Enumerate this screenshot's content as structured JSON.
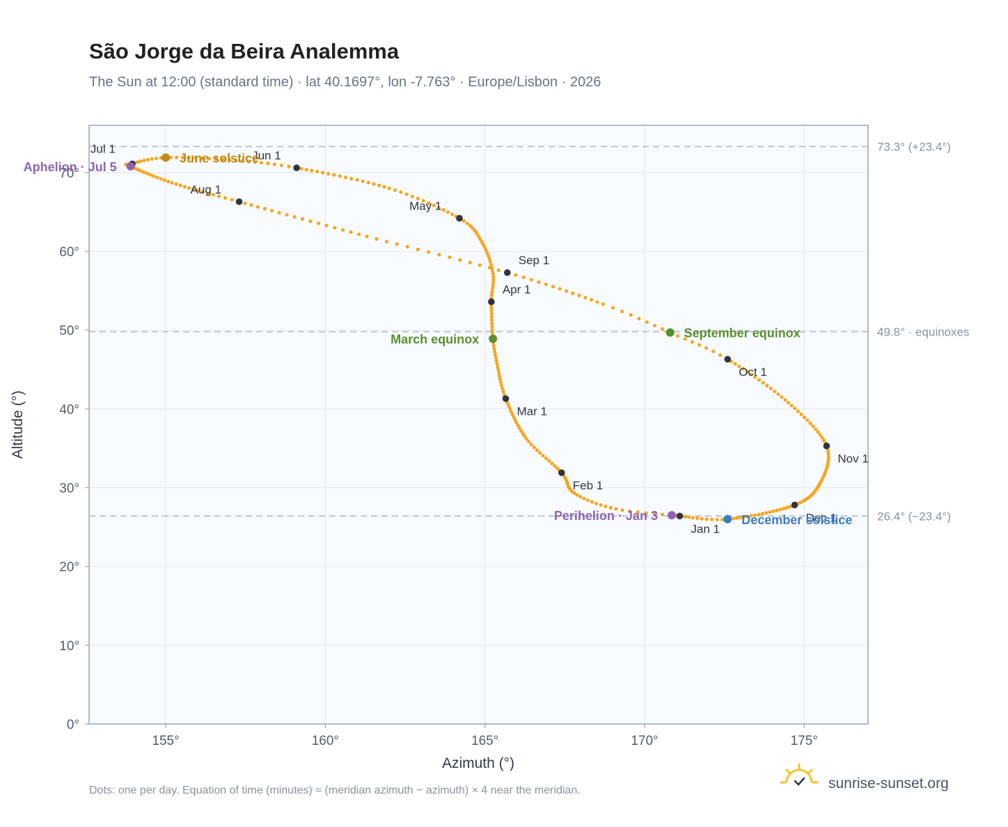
{
  "title": "São Jorge da Beira Analemma",
  "subtitle": "The Sun at 12:00 (standard time) · lat 40.1697°, lon -7.763° · Europe/Lisbon · 2026",
  "footnote": "Dots: one per day. Equation of time (minutes) ≈ (meridian azimuth − azimuth) × 4 near the meridian.",
  "brand": {
    "name": "sunrise-sunset.org",
    "icon": "sun-logo-icon",
    "color": "#f2c230"
  },
  "colors": {
    "path": "#f5a623",
    "month_marker": "#2f3540",
    "solstice_june": "#c08a17",
    "solstice_december": "#3b7bc4",
    "equinox": "#5a8f2e",
    "apsis": "#8e63b0",
    "plot_bg": "#f8fbfe",
    "reference_line": "#a9b7c4"
  },
  "chart_data": {
    "type": "scatter",
    "xlabel": "Azimuth (°)",
    "ylabel": "Altitude (°)",
    "xlim": [
      152.6,
      177.0
    ],
    "ylim": [
      0,
      76
    ],
    "x_ticks": [
      155,
      160,
      165,
      170,
      175
    ],
    "x_tick_labels": [
      "155°",
      "160°",
      "165°",
      "170°",
      "175°"
    ],
    "y_ticks": [
      0,
      10,
      20,
      30,
      40,
      50,
      60,
      70
    ],
    "y_tick_labels": [
      "0°",
      "10°",
      "20°",
      "30°",
      "40°",
      "50°",
      "60°",
      "70°"
    ],
    "grid": true,
    "daily_path_anchors": [
      {
        "day": 1,
        "az": 171.1,
        "alt": 26.4
      },
      {
        "day": 10,
        "az": 169.1,
        "alt": 27.3
      },
      {
        "day": 20,
        "az": 167.8,
        "alt": 29.3
      },
      {
        "day": 32,
        "az": 167.4,
        "alt": 31.9
      },
      {
        "day": 45,
        "az": 166.3,
        "alt": 36.2
      },
      {
        "day": 60,
        "az": 165.65,
        "alt": 41.3
      },
      {
        "day": 70,
        "az": 165.4,
        "alt": 45.3
      },
      {
        "day": 79,
        "az": 165.25,
        "alt": 48.9
      },
      {
        "day": 91,
        "az": 165.2,
        "alt": 53.6
      },
      {
        "day": 100,
        "az": 165.25,
        "alt": 57.2
      },
      {
        "day": 111,
        "az": 164.9,
        "alt": 61.2
      },
      {
        "day": 121,
        "az": 164.2,
        "alt": 64.2
      },
      {
        "day": 135,
        "az": 162.0,
        "alt": 68.0
      },
      {
        "day": 152,
        "az": 159.1,
        "alt": 70.6
      },
      {
        "day": 162,
        "az": 157.0,
        "alt": 71.6
      },
      {
        "day": 172,
        "az": 155.0,
        "alt": 71.9
      },
      {
        "day": 182,
        "az": 153.9,
        "alt": 71.1
      },
      {
        "day": 186,
        "az": 153.9,
        "alt": 70.8
      },
      {
        "day": 200,
        "az": 155.2,
        "alt": 68.7
      },
      {
        "day": 213,
        "az": 157.3,
        "alt": 66.3
      },
      {
        "day": 230,
        "az": 161.3,
        "alt": 61.9
      },
      {
        "day": 244,
        "az": 165.7,
        "alt": 57.3
      },
      {
        "day": 258,
        "az": 168.7,
        "alt": 53.3
      },
      {
        "day": 266,
        "az": 170.8,
        "alt": 49.7
      },
      {
        "day": 274,
        "az": 172.6,
        "alt": 46.3
      },
      {
        "day": 290,
        "az": 174.5,
        "alt": 40.8
      },
      {
        "day": 305,
        "az": 175.7,
        "alt": 35.3
      },
      {
        "day": 320,
        "az": 175.5,
        "alt": 30.6
      },
      {
        "day": 335,
        "az": 174.7,
        "alt": 27.8
      },
      {
        "day": 355,
        "az": 172.6,
        "alt": 26.0
      },
      {
        "day": 366,
        "az": 171.1,
        "alt": 26.4
      }
    ],
    "month_markers": [
      {
        "label": "Jan 1",
        "az": 171.1,
        "alt": 26.4,
        "dx": 16,
        "dy": 24
      },
      {
        "label": "Feb 1",
        "az": 167.4,
        "alt": 31.9,
        "dx": 16,
        "dy": 24
      },
      {
        "label": "Mar 1",
        "az": 165.65,
        "alt": 41.3,
        "dx": 16,
        "dy": 24
      },
      {
        "label": "Apr 1",
        "az": 165.2,
        "alt": 53.6,
        "dx": 16,
        "dy": -12
      },
      {
        "label": "May 1",
        "az": 164.2,
        "alt": 64.2,
        "dx": -72,
        "dy": -12
      },
      {
        "label": "Jun 1",
        "az": 159.1,
        "alt": 70.6,
        "dx": -64,
        "dy": -12
      },
      {
        "label": "Jul 1",
        "az": 153.95,
        "alt": 71.1,
        "dx": -60,
        "dy": -16
      },
      {
        "label": "Aug 1",
        "az": 157.3,
        "alt": 66.3,
        "dx": -70,
        "dy": -12
      },
      {
        "label": "Sep 1",
        "az": 165.7,
        "alt": 57.3,
        "dx": 16,
        "dy": -12
      },
      {
        "label": "Oct 1",
        "az": 172.6,
        "alt": 46.3,
        "dx": 16,
        "dy": 24
      },
      {
        "label": "Nov 1",
        "az": 175.7,
        "alt": 35.3,
        "dx": 16,
        "dy": 24
      },
      {
        "label": "Dec 1",
        "az": 174.7,
        "alt": 27.8,
        "dx": 16,
        "dy": 24
      }
    ],
    "events": [
      {
        "label": "June solstice",
        "az": 155.0,
        "alt": 71.9,
        "color": "#c08a17",
        "side": "right"
      },
      {
        "label": "December solstice",
        "az": 172.6,
        "alt": 26.0,
        "color": "#3b7bc4",
        "side": "right"
      },
      {
        "label": "March equinox",
        "az": 165.25,
        "alt": 48.9,
        "color": "#5a8f2e",
        "side": "left"
      },
      {
        "label": "September equinox",
        "az": 170.8,
        "alt": 49.7,
        "color": "#5a8f2e",
        "side": "right"
      },
      {
        "label": "Aphelion · Jul 5",
        "az": 153.9,
        "alt": 70.8,
        "color": "#8e63b0",
        "side": "left"
      },
      {
        "label": "Perihelion · Jan 3",
        "az": 170.85,
        "alt": 26.5,
        "color": "#8e63b0",
        "side": "left"
      }
    ],
    "reference_lines": [
      {
        "alt": 73.3,
        "label": "73.3° (+23.4°)"
      },
      {
        "alt": 49.8,
        "label": "49.8° · equinoxes"
      },
      {
        "alt": 26.4,
        "label": "26.4° (−23.4°)"
      }
    ]
  }
}
